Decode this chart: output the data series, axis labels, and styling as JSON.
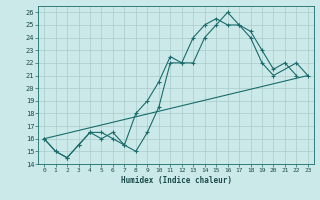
{
  "xlabel": "Humidex (Indice chaleur)",
  "bg_color": "#cce9e9",
  "grid_color": "#aacccc",
  "line_color": "#1a6b6b",
  "xlim": [
    -0.5,
    23.5
  ],
  "ylim": [
    14,
    26.5
  ],
  "xticks": [
    0,
    1,
    2,
    3,
    4,
    5,
    6,
    7,
    8,
    9,
    10,
    11,
    12,
    13,
    14,
    15,
    16,
    17,
    18,
    19,
    20,
    21,
    22,
    23
  ],
  "yticks": [
    14,
    15,
    16,
    17,
    18,
    19,
    20,
    21,
    22,
    23,
    24,
    25,
    26
  ],
  "series": [
    {
      "x": [
        0,
        1,
        2,
        3,
        4,
        5,
        6,
        7,
        8,
        9,
        10,
        11,
        12,
        13,
        14,
        15,
        16,
        17,
        18,
        19,
        20,
        21,
        22
      ],
      "y": [
        16,
        15,
        14.5,
        15.5,
        16.5,
        16,
        16.5,
        15.5,
        15,
        16.5,
        18.5,
        22,
        22,
        22,
        24,
        25,
        26,
        25,
        24.5,
        23,
        21.5,
        22,
        21
      ]
    },
    {
      "x": [
        0,
        1,
        2,
        3,
        4,
        5,
        6,
        7,
        8,
        9,
        10,
        11,
        12,
        13,
        14,
        15,
        16,
        17,
        18,
        19,
        20,
        22,
        23
      ],
      "y": [
        16,
        15,
        14.5,
        15.5,
        16.5,
        16.5,
        16,
        15.5,
        18,
        19,
        20.5,
        22.5,
        22,
        24,
        25,
        25.5,
        25,
        25,
        24,
        22,
        21,
        22,
        21
      ]
    },
    {
      "x": [
        0,
        23
      ],
      "y": [
        16,
        21
      ]
    }
  ]
}
